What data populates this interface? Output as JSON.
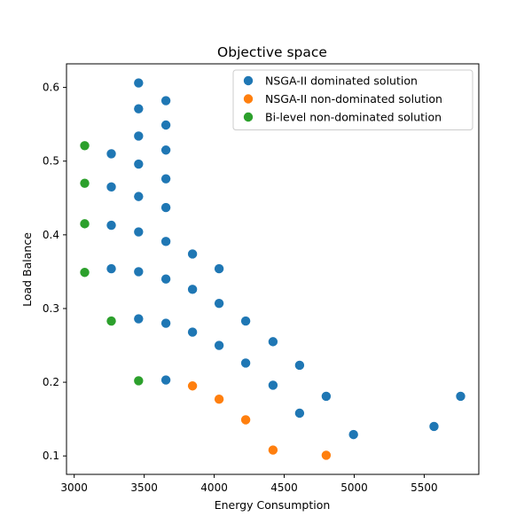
{
  "chart_data": {
    "type": "scatter",
    "title": "Objective space",
    "xlabel": "Energy Consumption",
    "ylabel": "Load Balance",
    "xlim": [
      2945,
      5890
    ],
    "ylim": [
      0.075,
      0.632
    ],
    "xticks": [
      3000,
      3500,
      4000,
      4500,
      5000,
      5500
    ],
    "yticks": [
      0.1,
      0.2,
      0.3,
      0.4,
      0.5,
      0.6
    ],
    "grid": false,
    "legend_position": "top-right",
    "series": [
      {
        "name": "NSGA-II dominated solution",
        "color": "#1f77b4",
        "points": [
          [
            3460,
            0.606
          ],
          [
            3460,
            0.571
          ],
          [
            3460,
            0.534
          ],
          [
            3460,
            0.496
          ],
          [
            3460,
            0.452
          ],
          [
            3460,
            0.404
          ],
          [
            3460,
            0.35
          ],
          [
            3460,
            0.286
          ],
          [
            3655,
            0.582
          ],
          [
            3655,
            0.549
          ],
          [
            3655,
            0.515
          ],
          [
            3655,
            0.476
          ],
          [
            3655,
            0.437
          ],
          [
            3655,
            0.391
          ],
          [
            3655,
            0.34
          ],
          [
            3655,
            0.28
          ],
          [
            3655,
            0.203
          ],
          [
            3265,
            0.51
          ],
          [
            3265,
            0.465
          ],
          [
            3265,
            0.413
          ],
          [
            3265,
            0.354
          ],
          [
            3845,
            0.374
          ],
          [
            3845,
            0.326
          ],
          [
            3845,
            0.268
          ],
          [
            4035,
            0.354
          ],
          [
            4035,
            0.307
          ],
          [
            4035,
            0.25
          ],
          [
            4225,
            0.283
          ],
          [
            4225,
            0.226
          ],
          [
            4420,
            0.255
          ],
          [
            4420,
            0.196
          ],
          [
            4610,
            0.223
          ],
          [
            4610,
            0.158
          ],
          [
            4800,
            0.181
          ],
          [
            4995,
            0.129
          ],
          [
            5570,
            0.14
          ],
          [
            5760,
            0.181
          ]
        ]
      },
      {
        "name": "NSGA-II non-dominated solution",
        "color": "#ff7f0e",
        "points": [
          [
            3845,
            0.195
          ],
          [
            4035,
            0.177
          ],
          [
            4225,
            0.149
          ],
          [
            4420,
            0.108
          ],
          [
            4800,
            0.101
          ]
        ]
      },
      {
        "name": "Bi-level non-dominated solution",
        "color": "#2ca02c",
        "points": [
          [
            3075,
            0.521
          ],
          [
            3075,
            0.47
          ],
          [
            3075,
            0.415
          ],
          [
            3075,
            0.349
          ],
          [
            3265,
            0.283
          ],
          [
            3460,
            0.202
          ]
        ]
      }
    ]
  }
}
